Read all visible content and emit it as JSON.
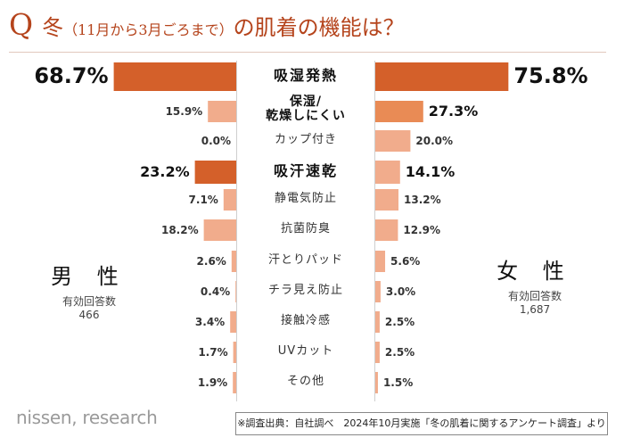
{
  "title": {
    "q": "Q",
    "main": "冬",
    "sub": "（11月から3月ごろまで）",
    "rest": "の肌着の機能は？"
  },
  "male": {
    "label": "男 性",
    "respondents_label": "有効回答数",
    "respondents": "466"
  },
  "female": {
    "label": "女 性",
    "respondents_label": "有効回答数",
    "respondents": "1,687"
  },
  "brand": "nissen, research",
  "footnote": "※調査出典：自社調べ　2024年10月実施「冬の肌着に関するアンケート調査」より",
  "colors": {
    "strong": "#d4602a",
    "medium": "#e98b55",
    "light": "#f1ac8c",
    "title": "#b5441c"
  },
  "chart_data": {
    "type": "bar",
    "orientation": "horizontal-butterfly",
    "title": "Q 冬（11月から3月ごろまで）の肌着の機能は？",
    "unit": "%",
    "categories": [
      "吸湿発熱",
      "保湿/乾燥しにくい",
      "カップ付き",
      "吸汗速乾",
      "静電気防止",
      "抗菌防臭",
      "汗とりパッド",
      "チラ見え防止",
      "接触冷感",
      "UVカット",
      "その他"
    ],
    "series": [
      {
        "name": "男性",
        "values": [
          68.7,
          15.9,
          0.0,
          23.2,
          7.1,
          18.2,
          2.6,
          0.4,
          3.4,
          1.7,
          1.9
        ],
        "labels": [
          "68.7%",
          "15.9%",
          "0.0%",
          "23.2%",
          "7.1%",
          "18.2%",
          "2.6%",
          "0.4%",
          "3.4%",
          "1.7%",
          "1.9%"
        ]
      },
      {
        "name": "女性",
        "values": [
          75.8,
          27.3,
          20.0,
          14.1,
          13.2,
          12.9,
          5.6,
          3.0,
          2.5,
          2.5,
          1.5
        ],
        "labels": [
          "75.8%",
          "27.3%",
          "20.0%",
          "14.1%",
          "13.2%",
          "12.9%",
          "5.6%",
          "3.0%",
          "2.5%",
          "2.5%",
          "1.5%"
        ]
      }
    ]
  }
}
